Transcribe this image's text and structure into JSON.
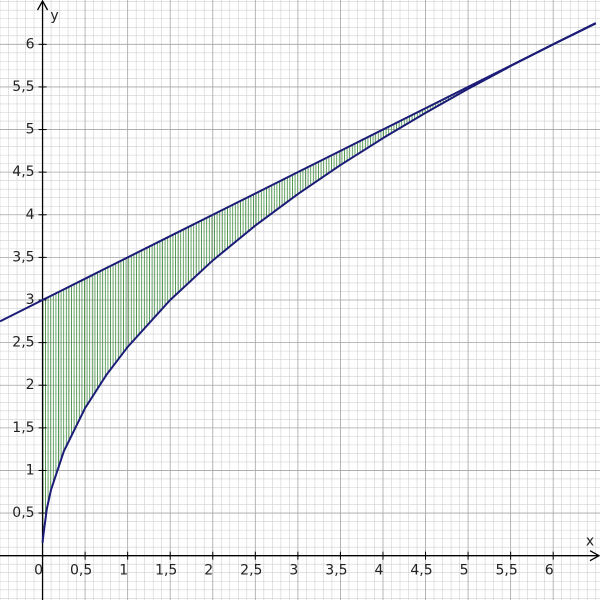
{
  "chart_data": {
    "type": "line",
    "x_label": "x",
    "y_label": "y",
    "x": [
      -0.5,
      0,
      0.01,
      0.05,
      0.1,
      0.25,
      0.5,
      0.75,
      1,
      1.5,
      2,
      2.5,
      3,
      3.5,
      4,
      4.5,
      5,
      5.5,
      6,
      6.5
    ],
    "series": [
      {
        "color": "#1c1c78",
        "values": [
          2.75,
          3,
          3.005,
          3.025,
          3.05,
          3.125,
          3.25,
          3.375,
          3.5,
          3.75,
          4,
          4.25,
          4.5,
          4.75,
          5,
          5.25,
          5.5,
          5.75,
          6,
          6.25
        ]
      },
      {
        "color": "#1c1c78",
        "values": [
          null,
          0.15,
          0.245,
          0.548,
          0.775,
          1.225,
          1.732,
          2.121,
          2.449,
          3,
          3.464,
          3.873,
          4.243,
          4.583,
          4.899,
          5.196,
          5.477,
          5.745,
          6,
          6.245
        ]
      }
    ],
    "fill_between": {
      "color": "#3a8a3a",
      "from": 0,
      "to": 6
    },
    "xlim": [
      -0.5,
      6.55
    ],
    "ylim": [
      -0.52,
      6.52
    ],
    "xticks": [
      {
        "value": 0,
        "label": "0"
      },
      {
        "value": 0.5,
        "label": "0,5"
      },
      1,
      {
        "value": 1.5,
        "label": "1,5"
      },
      2,
      {
        "value": 2.5,
        "label": "2,5"
      },
      3,
      {
        "value": 3.5,
        "label": "3,5"
      },
      4,
      {
        "value": 4.5,
        "label": "4,5"
      },
      5,
      {
        "value": 5.5,
        "label": "5,5"
      },
      6
    ],
    "yticks": [
      {
        "value": 0.5,
        "label": "0,5"
      },
      1,
      {
        "value": 1.5,
        "label": "1,5"
      },
      2,
      {
        "value": 2.5,
        "label": "2,5"
      },
      3,
      {
        "value": 3.5,
        "label": "3,5"
      },
      4,
      {
        "value": 4.5,
        "label": "4,5"
      },
      5,
      {
        "value": 5.5,
        "label": "5,5"
      },
      6
    ],
    "grid": true
  }
}
